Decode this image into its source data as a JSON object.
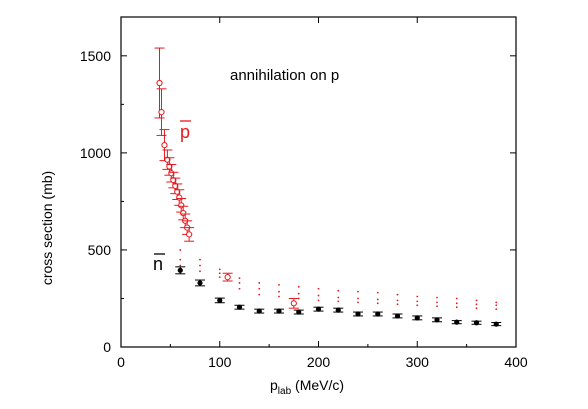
{
  "chart_data": {
    "type": "scatter",
    "title": "",
    "annotation": "annihilation on p",
    "xlabel": "p",
    "xlabel_sub": "lab",
    "xlabel_unit": " (MeV/c)",
    "ylabel": "cross section (mb)",
    "xlim": [
      0,
      400
    ],
    "ylim": [
      0,
      1700
    ],
    "xticks": [
      0,
      100,
      200,
      300,
      400
    ],
    "yticks": [
      0,
      500,
      1000,
      1500
    ],
    "grid": false,
    "series": [
      {
        "name": "p",
        "label_bar": true,
        "color": "#e8191e",
        "marker": "open-circle",
        "points": [
          {
            "x": 39,
            "y": 1360,
            "err": 180
          },
          {
            "x": 41,
            "y": 1210,
            "err": 120
          },
          {
            "x": 44,
            "y": 1040,
            "err": 80
          },
          {
            "x": 47,
            "y": 965,
            "err": 50
          },
          {
            "x": 49,
            "y": 930,
            "err": 45
          },
          {
            "x": 51,
            "y": 895,
            "err": 45
          },
          {
            "x": 53,
            "y": 860,
            "err": 40
          },
          {
            "x": 55,
            "y": 830,
            "err": 40
          },
          {
            "x": 57,
            "y": 800,
            "err": 40
          },
          {
            "x": 59,
            "y": 770,
            "err": 40
          },
          {
            "x": 61,
            "y": 730,
            "err": 35
          },
          {
            "x": 63,
            "y": 690,
            "err": 35
          },
          {
            "x": 65,
            "y": 650,
            "err": 35
          },
          {
            "x": 67,
            "y": 615,
            "err": 35
          },
          {
            "x": 69,
            "y": 580,
            "err": 35
          },
          {
            "x": 108,
            "y": 360,
            "err": 20
          },
          {
            "x": 175,
            "y": 225,
            "err": 25
          }
        ]
      },
      {
        "name": "n",
        "label_bar": true,
        "color": "#000000",
        "marker": "filled-circle",
        "points": [
          {
            "x": 60,
            "y": 395,
            "err": 18
          },
          {
            "x": 80,
            "y": 330,
            "err": 15
          },
          {
            "x": 100,
            "y": 240,
            "err": 12
          },
          {
            "x": 120,
            "y": 205,
            "err": 10
          },
          {
            "x": 140,
            "y": 185,
            "err": 10
          },
          {
            "x": 160,
            "y": 185,
            "err": 10
          },
          {
            "x": 180,
            "y": 180,
            "err": 10
          },
          {
            "x": 200,
            "y": 195,
            "err": 10
          },
          {
            "x": 220,
            "y": 190,
            "err": 10
          },
          {
            "x": 240,
            "y": 170,
            "err": 10
          },
          {
            "x": 260,
            "y": 170,
            "err": 10
          },
          {
            "x": 280,
            "y": 160,
            "err": 10
          },
          {
            "x": 300,
            "y": 150,
            "err": 10
          },
          {
            "x": 320,
            "y": 140,
            "err": 10
          },
          {
            "x": 340,
            "y": 128,
            "err": 8
          },
          {
            "x": 360,
            "y": 125,
            "err": 8
          },
          {
            "x": 380,
            "y": 118,
            "err": 8
          }
        ]
      }
    ],
    "dotted_series": [
      {
        "color": "#e8191e",
        "x": [
          60,
          80,
          100,
          120,
          140,
          160,
          180,
          200,
          220,
          240,
          260,
          280,
          300,
          320,
          340,
          360,
          380
        ],
        "y_bands": [
          [
            500,
            450,
            400,
            355,
            330,
            320,
            310,
            300,
            290,
            285,
            280,
            270,
            260,
            255,
            250,
            240,
            230
          ],
          [
            450,
            420,
            380,
            330,
            300,
            285,
            275,
            265,
            255,
            250,
            245,
            240,
            235,
            230,
            225,
            220,
            215
          ],
          [
            420,
            390,
            360,
            300,
            270,
            260,
            250,
            240,
            235,
            230,
            225,
            220,
            215,
            210,
            205,
            200,
            195
          ]
        ]
      }
    ]
  }
}
